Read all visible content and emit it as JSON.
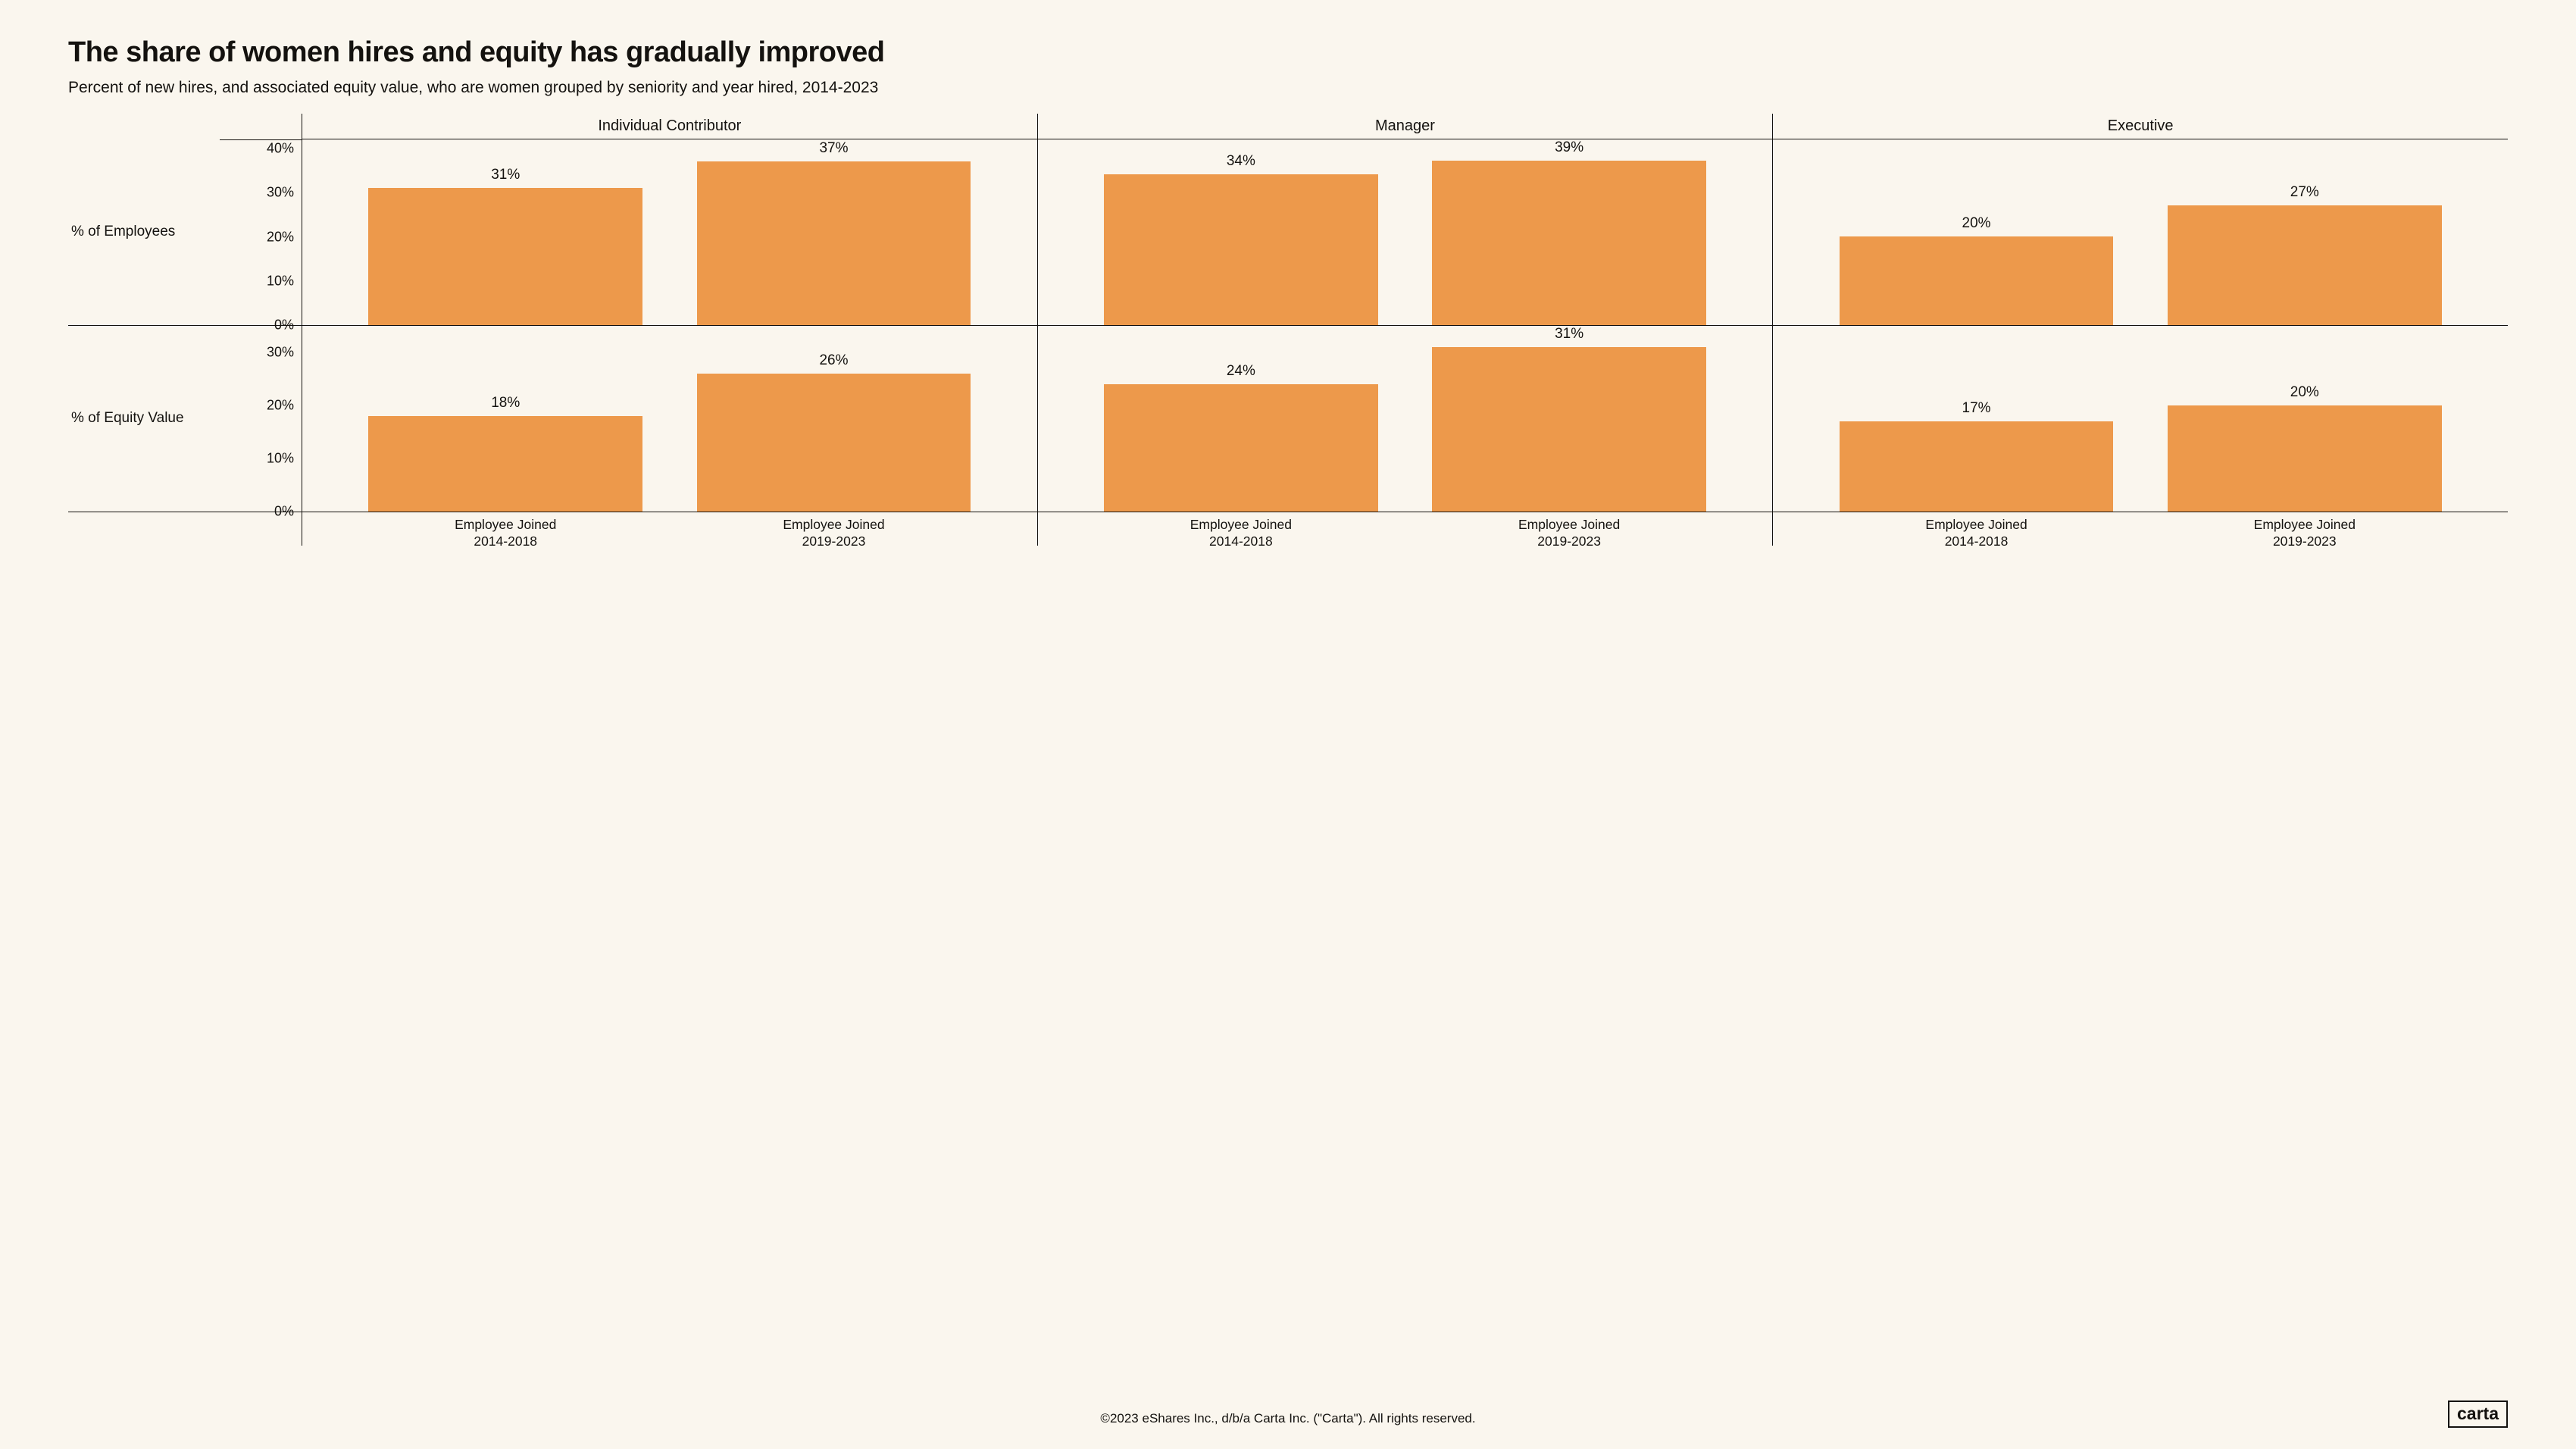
{
  "background_color": "#faf6ee",
  "text_color": "#14120f",
  "title": "The share of women hires and equity has gradually improved",
  "title_fontsize": 38,
  "subtitle": "Percent of new hires, and associated equity value, who are women grouped by seniority and year hired, 2014-2023",
  "subtitle_fontsize": 21,
  "chart": {
    "type": "bar",
    "bar_color": "#ed994b",
    "grid_color": "#14120f",
    "axis_fontsize": 18,
    "header_fontsize": 20,
    "rowlabel_fontsize": 19,
    "value_fontsize": 19,
    "xlabel_fontsize": 17.5,
    "column_headers": [
      "Individual Contributor",
      "Manager",
      "Executive"
    ],
    "x_categories": [
      "Employee Joined\n2014-2018",
      "Employee Joined\n2019-2023"
    ],
    "rows": [
      {
        "label": "% of Employees",
        "ymax": 42,
        "yticks": [
          0,
          10,
          20,
          30,
          40
        ],
        "tick_suffix": "%",
        "values": [
          [
            31,
            37
          ],
          [
            34,
            39
          ],
          [
            20,
            27
          ]
        ]
      },
      {
        "label": "% of Equity Value",
        "ymax": 35,
        "yticks": [
          0,
          10,
          20,
          30
        ],
        "tick_suffix": "%",
        "values": [
          [
            18,
            26
          ],
          [
            24,
            31
          ],
          [
            17,
            20
          ]
        ]
      }
    ]
  },
  "footer": {
    "copyright": "©2023 eShares Inc., d/b/a Carta Inc. (\"Carta\"). All rights reserved.",
    "fontsize": 17,
    "logo_text": "carta",
    "logo_fontsize": 23
  }
}
